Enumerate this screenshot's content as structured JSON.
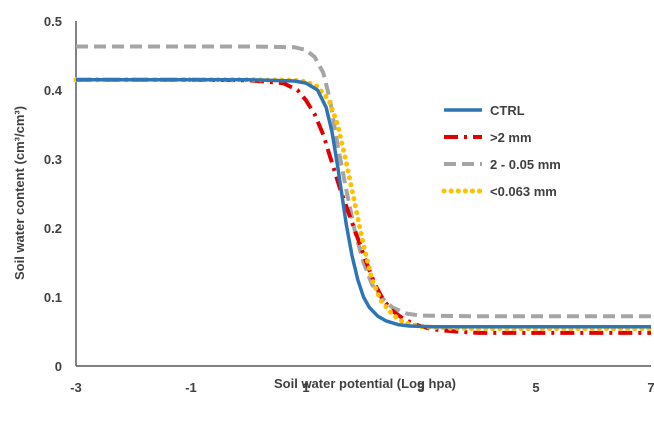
{
  "chart_data": {
    "type": "line",
    "xlabel": "Soil water potential (Log hpa)",
    "ylabel": "Soil water content (cm³/cm³)",
    "xlim": [
      -3,
      7
    ],
    "ylim": [
      0,
      0.5
    ],
    "x_ticks": [
      "-3",
      "-1",
      "1",
      "3",
      "5",
      "7"
    ],
    "y_ticks": [
      "0",
      "0.1",
      "0.2",
      "0.3",
      "0.4",
      "0.5"
    ],
    "grid": false,
    "legend_position": "right",
    "series": [
      {
        "name": "CTRL",
        "color": "#2E75B6",
        "style": "solid",
        "x": [
          -3,
          -1,
          0,
          0.8,
          1.0,
          1.2,
          1.35,
          1.45,
          1.55,
          1.62,
          1.7,
          1.8,
          1.9,
          2.0,
          2.1,
          2.25,
          2.4,
          2.6,
          2.8,
          3.2,
          4,
          5,
          6,
          7
        ],
        "y": [
          0.415,
          0.415,
          0.415,
          0.413,
          0.41,
          0.4,
          0.375,
          0.34,
          0.29,
          0.25,
          0.205,
          0.16,
          0.125,
          0.1,
          0.085,
          0.072,
          0.065,
          0.06,
          0.058,
          0.057,
          0.057,
          0.057,
          0.057,
          0.057
        ]
      },
      {
        "name": ">2 mm",
        "color": "#E00000",
        "style": "dashdot",
        "x": [
          -3,
          -1,
          0,
          0.6,
          0.85,
          1.0,
          1.15,
          1.3,
          1.45,
          1.6,
          1.75,
          1.9,
          2.05,
          2.2,
          2.35,
          2.5,
          2.7,
          2.9,
          3.2,
          3.6,
          4,
          5,
          6,
          7
        ],
        "y": [
          0.415,
          0.415,
          0.414,
          0.41,
          0.4,
          0.385,
          0.365,
          0.335,
          0.295,
          0.255,
          0.22,
          0.185,
          0.15,
          0.118,
          0.095,
          0.08,
          0.068,
          0.06,
          0.053,
          0.05,
          0.048,
          0.048,
          0.048,
          0.048
        ]
      },
      {
        "name": "2 - 0.05 mm",
        "color": "#A5A5A5",
        "style": "dashed",
        "x": [
          -3,
          -1,
          0,
          0.8,
          1.0,
          1.15,
          1.3,
          1.42,
          1.55,
          1.7,
          1.85,
          2.0,
          2.15,
          2.3,
          2.5,
          2.75,
          3.0,
          4,
          5,
          6,
          7
        ],
        "y": [
          0.463,
          0.463,
          0.463,
          0.462,
          0.458,
          0.448,
          0.425,
          0.385,
          0.32,
          0.255,
          0.195,
          0.15,
          0.118,
          0.1,
          0.085,
          0.076,
          0.073,
          0.072,
          0.072,
          0.072,
          0.072
        ]
      },
      {
        "name": "<0.063 mm",
        "color": "#FFC000",
        "style": "dotted",
        "x": [
          -3,
          -1,
          0,
          0.8,
          1.0,
          1.2,
          1.4,
          1.55,
          1.7,
          1.85,
          2.0,
          2.15,
          2.3,
          2.5,
          2.7,
          3.0,
          3.5,
          4,
          5,
          6,
          7
        ],
        "y": [
          0.415,
          0.415,
          0.415,
          0.414,
          0.412,
          0.405,
          0.385,
          0.35,
          0.295,
          0.235,
          0.175,
          0.125,
          0.095,
          0.075,
          0.063,
          0.057,
          0.055,
          0.054,
          0.054,
          0.054,
          0.054
        ]
      }
    ]
  }
}
